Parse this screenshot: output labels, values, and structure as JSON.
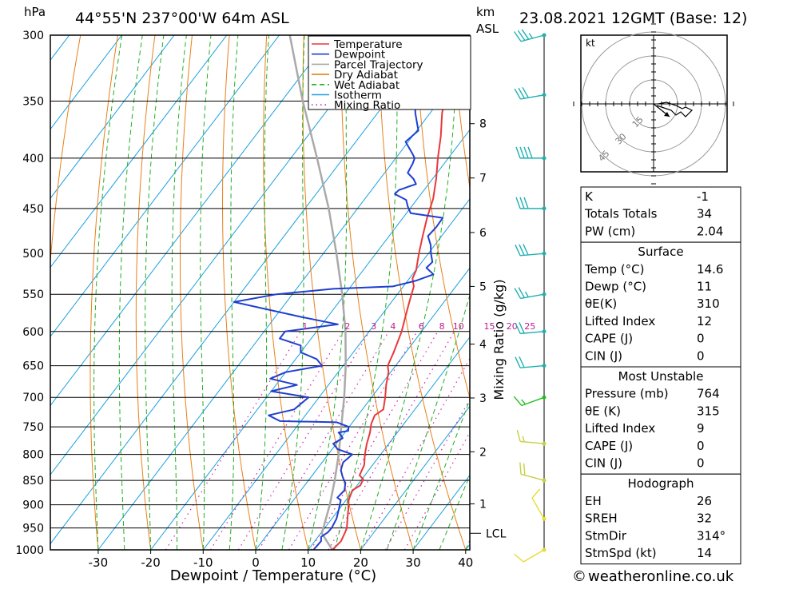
{
  "header": {
    "unit_left": "hPa",
    "location": "44°55'N  237°00'W  64m  ASL",
    "unit_km": "km",
    "unit_asl": "ASL",
    "datetime": "23.08.2021  12GMT  (Base: 12)"
  },
  "footer": {
    "credit": "© weatheronline.co.uk",
    "credit_symbol": "©",
    "credit_text": "weatheronline.co.uk"
  },
  "chart_data": {
    "type": "line",
    "title": "Skew-T log-P sounding",
    "xlabel": "Dewpoint / Temperature (°C)",
    "ylabel": "hPa",
    "right_axis_label": "Mixing Ratio (g/kg)",
    "pressure_levels": [
      300,
      350,
      400,
      450,
      500,
      550,
      600,
      650,
      700,
      750,
      800,
      850,
      900,
      950,
      1000
    ],
    "pressure_range": [
      300,
      1000
    ],
    "temperature_ticks": [
      -30,
      -20,
      -10,
      0,
      10,
      20,
      30,
      40
    ],
    "temperature_range": [
      -40,
      40
    ],
    "km_ticks": [
      {
        "p": 369,
        "label": "8"
      },
      {
        "p": 419,
        "label": "7"
      },
      {
        "p": 476,
        "label": "6"
      },
      {
        "p": 540,
        "label": "5"
      },
      {
        "p": 618,
        "label": "4"
      },
      {
        "p": 701,
        "label": "3"
      },
      {
        "p": 795,
        "label": "2"
      },
      {
        "p": 898,
        "label": "1"
      }
    ],
    "lcl": {
      "p": 962,
      "label": "LCL"
    },
    "mixing_ratio_labels": [
      "1",
      "2",
      "3",
      "4",
      "6",
      "8",
      "10",
      "15",
      "20",
      "25"
    ],
    "mixing_ratio_values": [
      1,
      2,
      3,
      4,
      6,
      8,
      10,
      15,
      20,
      25
    ],
    "mixing_ratio_label_level": 590,
    "legend": [
      "Temperature",
      "Dewpoint",
      "Parcel Trajectory",
      "Dry Adiabat",
      "Wet Adiabat",
      "Isotherm",
      "Mixing Ratio"
    ],
    "legend_colors": [
      "#e8393a",
      "#1f3fd0",
      "#a9a9a9",
      "#e8801a",
      "#20b020",
      "#1aa0e0",
      "#d020b0"
    ],
    "series": [
      {
        "name": "Temperature",
        "color": "#e8393a",
        "points": [
          [
            1000,
            14.6
          ],
          [
            980,
            15.0
          ],
          [
            960,
            14.5
          ],
          [
            950,
            14.2
          ],
          [
            930,
            13.0
          ],
          [
            910,
            11.8
          ],
          [
            890,
            10.5
          ],
          [
            870,
            9.8
          ],
          [
            860,
            10.6
          ],
          [
            848,
            10.3
          ],
          [
            840,
            9.0
          ],
          [
            820,
            8.4
          ],
          [
            800,
            7.0
          ],
          [
            780,
            5.8
          ],
          [
            760,
            4.8
          ],
          [
            745,
            3.8
          ],
          [
            730,
            3.2
          ],
          [
            720,
            4.0
          ],
          [
            700,
            2.6
          ],
          [
            680,
            1.0
          ],
          [
            660,
            -0.4
          ],
          [
            650,
            -1.5
          ],
          [
            630,
            -2.3
          ],
          [
            600,
            -3.8
          ],
          [
            580,
            -5.2
          ],
          [
            560,
            -6.6
          ],
          [
            540,
            -8.0
          ],
          [
            530,
            -9.4
          ],
          [
            520,
            -9.9
          ],
          [
            500,
            -11.8
          ],
          [
            480,
            -13.6
          ],
          [
            460,
            -15.4
          ],
          [
            450,
            -16.2
          ],
          [
            440,
            -17.0
          ],
          [
            420,
            -19.3
          ],
          [
            400,
            -22.0
          ],
          [
            380,
            -24.6
          ],
          [
            360,
            -27.7
          ],
          [
            350,
            -29.0
          ],
          [
            330,
            -31.6
          ],
          [
            310,
            -33.6
          ],
          [
            300,
            -35.2
          ]
        ]
      },
      {
        "name": "Dewpoint",
        "color": "#1f3fd0",
        "points": [
          [
            1000,
            11.0
          ],
          [
            980,
            11.2
          ],
          [
            970,
            10.6
          ],
          [
            960,
            11.2
          ],
          [
            950,
            11.3
          ],
          [
            930,
            10.9
          ],
          [
            910,
            10.0
          ],
          [
            890,
            9.0
          ],
          [
            885,
            8.0
          ],
          [
            870,
            8.3
          ],
          [
            855,
            7.4
          ],
          [
            850,
            6.8
          ],
          [
            843,
            6.0
          ],
          [
            830,
            4.7
          ],
          [
            815,
            4.0
          ],
          [
            800,
            4.6
          ],
          [
            790,
            1.0
          ],
          [
            780,
            -0.6
          ],
          [
            770,
            0.4
          ],
          [
            765,
            -0.3
          ],
          [
            760,
            -1.2
          ],
          [
            757,
            0.4
          ],
          [
            750,
            -0.1
          ],
          [
            742,
            -3.0
          ],
          [
            740,
            -14.0
          ],
          [
            730,
            -17.0
          ],
          [
            720,
            -13.0
          ],
          [
            700,
            -12.0
          ],
          [
            690,
            -20.0
          ],
          [
            680,
            -16.0
          ],
          [
            670,
            -22.0
          ],
          [
            660,
            -20.0
          ],
          [
            650,
            -14.0
          ],
          [
            640,
            -16.0
          ],
          [
            630,
            -20.0
          ],
          [
            620,
            -21.0
          ],
          [
            610,
            -26.0
          ],
          [
            600,
            -26.0
          ],
          [
            590,
            -17.0
          ],
          [
            580,
            -25.0
          ],
          [
            560,
            -40.0
          ],
          [
            550,
            -33.0
          ],
          [
            543,
            -23.0
          ],
          [
            540,
            -12.0
          ],
          [
            533,
            -8.5
          ],
          [
            525,
            -6.0
          ],
          [
            517,
            -8.3
          ],
          [
            510,
            -8.0
          ],
          [
            500,
            -9.5
          ],
          [
            490,
            -10.8
          ],
          [
            480,
            -12.6
          ],
          [
            470,
            -12.3
          ],
          [
            460,
            -12.4
          ],
          [
            455,
            -19.2
          ],
          [
            448,
            -20.7
          ],
          [
            441,
            -22.0
          ],
          [
            435,
            -25.0
          ],
          [
            431,
            -24.8
          ],
          [
            425,
            -22.4
          ],
          [
            420,
            -23.6
          ],
          [
            414,
            -25.6
          ],
          [
            405,
            -26.0
          ],
          [
            400,
            -26.4
          ],
          [
            395,
            -27.7
          ],
          [
            385,
            -30.5
          ],
          [
            375,
            -29.7
          ],
          [
            360,
            -32.8
          ],
          [
            350,
            -34.6
          ],
          [
            340,
            -36.6
          ],
          [
            330,
            -43.5
          ],
          [
            320,
            -45.2
          ],
          [
            310,
            -45.5
          ],
          [
            300,
            -46.3
          ]
        ]
      },
      {
        "name": "Parcel Trajectory",
        "color": "#a9a9a9",
        "points": [
          [
            1000,
            14.6
          ],
          [
            962,
            10.2
          ],
          [
            900,
            7.6
          ],
          [
            850,
            5.0
          ],
          [
            800,
            2.0
          ],
          [
            750,
            -1.5
          ],
          [
            700,
            -5.2
          ],
          [
            650,
            -9.5
          ],
          [
            600,
            -14.5
          ],
          [
            550,
            -20.5
          ],
          [
            500,
            -27.5
          ],
          [
            450,
            -35.5
          ],
          [
            400,
            -45.0
          ],
          [
            350,
            -56.0
          ],
          [
            300,
            -68.0
          ]
        ]
      }
    ],
    "wind_barbs": [
      {
        "p": 300,
        "dir": 255,
        "kt": 35,
        "color": "#22b0b0"
      },
      {
        "p": 345,
        "dir": 260,
        "kt": 30,
        "color": "#22b0b0"
      },
      {
        "p": 400,
        "dir": 270,
        "kt": 40,
        "color": "#22b0b0"
      },
      {
        "p": 450,
        "dir": 270,
        "kt": 30,
        "color": "#22b0b0"
      },
      {
        "p": 500,
        "dir": 265,
        "kt": 30,
        "color": "#22b0b0"
      },
      {
        "p": 550,
        "dir": 260,
        "kt": 25,
        "color": "#22b0b0"
      },
      {
        "p": 600,
        "dir": 265,
        "kt": 20,
        "color": "#22b0b0"
      },
      {
        "p": 650,
        "dir": 265,
        "kt": 20,
        "color": "#22b0b0"
      },
      {
        "p": 700,
        "dir": 250,
        "kt": 15,
        "color": "#20c020"
      },
      {
        "p": 780,
        "dir": 275,
        "kt": 15,
        "color": "#c8d040"
      },
      {
        "p": 850,
        "dir": 285,
        "kt": 20,
        "color": "#c8d040"
      },
      {
        "p": 930,
        "dir": 330,
        "kt": 10,
        "color": "#e6dc30"
      },
      {
        "p": 1000,
        "dir": 240,
        "kt": 10,
        "color": "#e6dc30"
      }
    ],
    "hodograph": {
      "unit": "kt",
      "ring_labels": [
        "15",
        "30",
        "45"
      ],
      "ring_values": [
        15,
        30,
        45
      ],
      "points": [
        [
          3,
          0
        ],
        [
          8,
          1
        ],
        [
          14,
          -1
        ],
        [
          18,
          -3
        ],
        [
          20,
          -2
        ],
        [
          24,
          -4
        ],
        [
          20,
          -8
        ],
        [
          17,
          -5
        ],
        [
          14,
          -7
        ],
        [
          11,
          -4
        ],
        [
          5,
          -2
        ],
        [
          2,
          -1
        ]
      ],
      "storm_motion": {
        "u": 10,
        "v": -8
      }
    }
  },
  "stats_table": {
    "rows": [
      {
        "label": "K",
        "value": "-1"
      },
      {
        "label": "Totals Totals",
        "value": "34"
      },
      {
        "label": "PW (cm)",
        "value": "2.04"
      }
    ]
  },
  "surface_table": {
    "title": "Surface",
    "rows": [
      {
        "label": "Temp (°C)",
        "value": "14.6"
      },
      {
        "label": "Dewp (°C)",
        "value": "11"
      },
      {
        "label": "θE(K)",
        "value": "310"
      },
      {
        "label": "Lifted Index",
        "value": "12"
      },
      {
        "label": "CAPE (J)",
        "value": "0"
      },
      {
        "label": "CIN (J)",
        "value": "0"
      }
    ]
  },
  "unstable_table": {
    "title": "Most Unstable",
    "rows": [
      {
        "label": "Pressure (mb)",
        "value": "764"
      },
      {
        "label": "θE (K)",
        "value": "315"
      },
      {
        "label": "Lifted Index",
        "value": "9"
      },
      {
        "label": "CAPE (J)",
        "value": "0"
      },
      {
        "label": "CIN (J)",
        "value": "0"
      }
    ]
  },
  "hodograph_table": {
    "title": "Hodograph",
    "rows": [
      {
        "label": "EH",
        "value": "26"
      },
      {
        "label": "SREH",
        "value": "32"
      },
      {
        "label": "StmDir",
        "value": "314°"
      },
      {
        "label": "StmSpd (kt)",
        "value": "14"
      }
    ]
  }
}
